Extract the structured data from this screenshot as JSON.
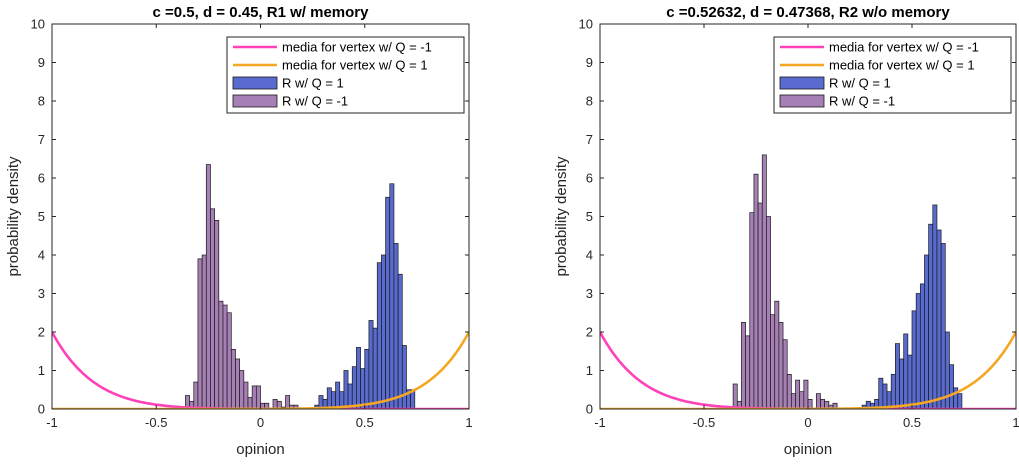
{
  "chart_data": [
    {
      "type": "bar",
      "title": "c =0.5, d = 0.45, R1 w/ memory",
      "xlabel": "opinion",
      "ylabel": "probability density",
      "xlim": [
        -1,
        1
      ],
      "ylim": [
        0,
        10
      ],
      "xticks": [
        "-1",
        "-0.5",
        "0",
        "0.5",
        "1"
      ],
      "yticks": [
        "0",
        "1",
        "2",
        "3",
        "4",
        "5",
        "6",
        "7",
        "8",
        "9",
        "10"
      ],
      "grid": false,
      "legend_position": "top-right",
      "bin_width": 0.02,
      "series": [
        {
          "name": "media for vertex w/ Q = -1",
          "kind": "curve",
          "color": "#ff40b8",
          "formula": "2*((1-x)/2)^k",
          "k": 10
        },
        {
          "name": "media for vertex w/ Q = 1",
          "kind": "curve",
          "color": "#f5a623",
          "formula": "2*((1+x)/2)^k",
          "k": 10
        },
        {
          "name": "R w/ Q = 1",
          "kind": "histogram",
          "color": "#5a6bd0",
          "bins": [
            {
              "x": 0.26,
              "v": 0.1
            },
            {
              "x": 0.28,
              "v": 0.35
            },
            {
              "x": 0.3,
              "v": 0.25
            },
            {
              "x": 0.32,
              "v": 0.55
            },
            {
              "x": 0.34,
              "v": 0.45
            },
            {
              "x": 0.36,
              "v": 0.7
            },
            {
              "x": 0.38,
              "v": 0.45
            },
            {
              "x": 0.4,
              "v": 1.0
            },
            {
              "x": 0.42,
              "v": 0.65
            },
            {
              "x": 0.44,
              "v": 1.1
            },
            {
              "x": 0.46,
              "v": 1.6
            },
            {
              "x": 0.48,
              "v": 1.05
            },
            {
              "x": 0.5,
              "v": 1.55
            },
            {
              "x": 0.52,
              "v": 2.3
            },
            {
              "x": 0.54,
              "v": 2.1
            },
            {
              "x": 0.56,
              "v": 3.8
            },
            {
              "x": 0.58,
              "v": 4.0
            },
            {
              "x": 0.6,
              "v": 5.5
            },
            {
              "x": 0.62,
              "v": 5.85
            },
            {
              "x": 0.64,
              "v": 4.3
            },
            {
              "x": 0.66,
              "v": 3.5
            },
            {
              "x": 0.68,
              "v": 1.65
            },
            {
              "x": 0.7,
              "v": 0.5
            },
            {
              "x": 0.72,
              "v": 0.5
            }
          ]
        },
        {
          "name": "R w/ Q = -1",
          "kind": "histogram",
          "color": "#a67fb4",
          "bins": [
            {
              "x": -0.36,
              "v": 0.35
            },
            {
              "x": -0.34,
              "v": 0.2
            },
            {
              "x": -0.32,
              "v": 0.7
            },
            {
              "x": -0.3,
              "v": 3.9
            },
            {
              "x": -0.28,
              "v": 4.0
            },
            {
              "x": -0.26,
              "v": 6.35
            },
            {
              "x": -0.24,
              "v": 5.2
            },
            {
              "x": -0.22,
              "v": 4.9
            },
            {
              "x": -0.2,
              "v": 2.8
            },
            {
              "x": -0.18,
              "v": 2.7
            },
            {
              "x": -0.16,
              "v": 2.5
            },
            {
              "x": -0.14,
              "v": 1.55
            },
            {
              "x": -0.12,
              "v": 1.3
            },
            {
              "x": -0.1,
              "v": 1.0
            },
            {
              "x": -0.08,
              "v": 0.7
            },
            {
              "x": -0.06,
              "v": 0.3
            },
            {
              "x": -0.04,
              "v": 0.6
            },
            {
              "x": -0.02,
              "v": 0.6
            },
            {
              "x": 0.0,
              "v": 0.15
            },
            {
              "x": 0.02,
              "v": 0.15
            },
            {
              "x": 0.06,
              "v": 0.25
            },
            {
              "x": 0.08,
              "v": 0.2
            },
            {
              "x": 0.1,
              "v": 0.05
            },
            {
              "x": 0.12,
              "v": 0.35
            },
            {
              "x": 0.14,
              "v": 0.1
            },
            {
              "x": 0.16,
              "v": 0.1
            }
          ]
        }
      ]
    },
    {
      "type": "bar",
      "title": "c =0.52632, d = 0.47368, R2 w/o memory",
      "xlabel": "opinion",
      "ylabel": "probability density",
      "xlim": [
        -1,
        1
      ],
      "ylim": [
        0,
        10
      ],
      "xticks": [
        "-1",
        "-0.5",
        "0",
        "0.5",
        "1"
      ],
      "yticks": [
        "0",
        "1",
        "2",
        "3",
        "4",
        "5",
        "6",
        "7",
        "8",
        "9",
        "10"
      ],
      "grid": false,
      "legend_position": "top-right",
      "bin_width": 0.02,
      "series": [
        {
          "name": "media for vertex w/ Q = -1",
          "kind": "curve",
          "color": "#ff40b8",
          "formula": "2*((1-x)/2)^k",
          "k": 10
        },
        {
          "name": "media for vertex w/ Q = 1",
          "kind": "curve",
          "color": "#f5a623",
          "formula": "2*((1+x)/2)^k",
          "k": 10
        },
        {
          "name": "R w/ Q = 1",
          "kind": "histogram",
          "color": "#5a6bd0",
          "bins": [
            {
              "x": 0.26,
              "v": 0.1
            },
            {
              "x": 0.28,
              "v": 0.2
            },
            {
              "x": 0.3,
              "v": 0.15
            },
            {
              "x": 0.32,
              "v": 0.25
            },
            {
              "x": 0.34,
              "v": 0.8
            },
            {
              "x": 0.36,
              "v": 0.65
            },
            {
              "x": 0.38,
              "v": 0.45
            },
            {
              "x": 0.4,
              "v": 0.9
            },
            {
              "x": 0.42,
              "v": 1.7
            },
            {
              "x": 0.44,
              "v": 1.3
            },
            {
              "x": 0.46,
              "v": 1.95
            },
            {
              "x": 0.48,
              "v": 1.4
            },
            {
              "x": 0.5,
              "v": 2.55
            },
            {
              "x": 0.52,
              "v": 3.0
            },
            {
              "x": 0.54,
              "v": 3.25
            },
            {
              "x": 0.56,
              "v": 4.0
            },
            {
              "x": 0.58,
              "v": 4.8
            },
            {
              "x": 0.6,
              "v": 5.3
            },
            {
              "x": 0.62,
              "v": 4.65
            },
            {
              "x": 0.64,
              "v": 4.3
            },
            {
              "x": 0.66,
              "v": 2.0
            },
            {
              "x": 0.68,
              "v": 1.15
            },
            {
              "x": 0.7,
              "v": 0.55
            },
            {
              "x": 0.72,
              "v": 0.4
            }
          ]
        },
        {
          "name": "R w/ Q = -1",
          "kind": "histogram",
          "color": "#a67fb4",
          "bins": [
            {
              "x": -0.36,
              "v": 0.65
            },
            {
              "x": -0.34,
              "v": 0.2
            },
            {
              "x": -0.32,
              "v": 2.25
            },
            {
              "x": -0.3,
              "v": 1.9
            },
            {
              "x": -0.28,
              "v": 5.1
            },
            {
              "x": -0.26,
              "v": 6.1
            },
            {
              "x": -0.24,
              "v": 5.35
            },
            {
              "x": -0.22,
              "v": 6.6
            },
            {
              "x": -0.2,
              "v": 5.0
            },
            {
              "x": -0.18,
              "v": 2.45
            },
            {
              "x": -0.16,
              "v": 2.8
            },
            {
              "x": -0.14,
              "v": 2.25
            },
            {
              "x": -0.12,
              "v": 1.8
            },
            {
              "x": -0.1,
              "v": 0.9
            },
            {
              "x": -0.08,
              "v": 0.4
            },
            {
              "x": -0.06,
              "v": 0.75
            },
            {
              "x": -0.04,
              "v": 0.45
            },
            {
              "x": -0.02,
              "v": 0.75
            },
            {
              "x": 0.0,
              "v": 0.25
            },
            {
              "x": 0.04,
              "v": 0.4
            },
            {
              "x": 0.06,
              "v": 0.25
            },
            {
              "x": 0.08,
              "v": 0.2
            },
            {
              "x": 0.1,
              "v": 0.1
            },
            {
              "x": 0.12,
              "v": 0.15
            }
          ]
        }
      ]
    }
  ]
}
